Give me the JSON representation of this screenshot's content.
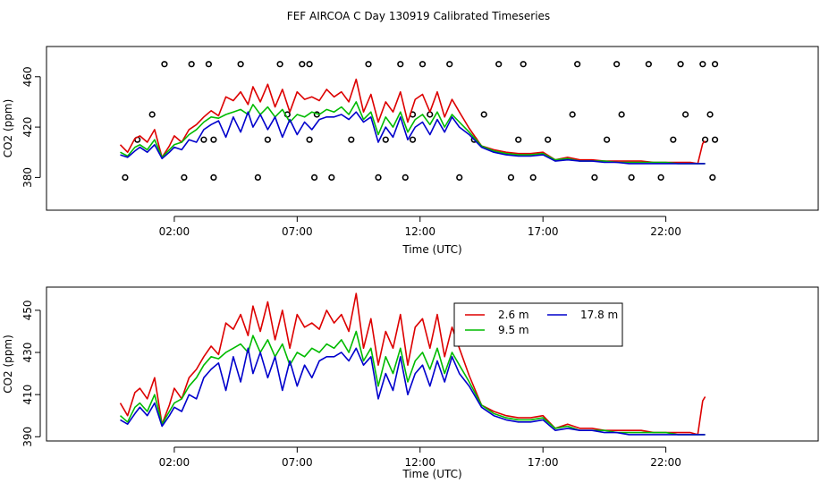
{
  "title": "FEF AIRCOA C  Day 130919  Calibrated Timeseries",
  "colors": {
    "2.6 m": "#dd0000",
    "9.5 m": "#00bb00",
    "17.8 m": "#0000cc",
    "flags": "#000000"
  },
  "chart_data": [
    {
      "type": "line",
      "panel": "top",
      "xlabel": "Time (UTC)",
      "ylabel": "CO2 (ppm)",
      "x_unit": "hours (UTC)",
      "xlim": [
        -3.2,
        28.2
      ],
      "ylim": [
        354,
        484
      ],
      "x_ticks": [
        2,
        7,
        12,
        17,
        22
      ],
      "x_tick_labels": [
        "02:00",
        "07:00",
        "12:00",
        "17:00",
        "22:00"
      ],
      "y_ticks": [
        380,
        420,
        460
      ],
      "y_tick_labels": [
        "380",
        "420",
        "460"
      ],
      "grid": false,
      "legend": "none",
      "series": [
        {
          "name": "2.6 m",
          "x": [
            -0.2,
            0.1,
            0.4,
            0.6,
            0.9,
            1.2,
            1.5,
            1.8,
            2.0,
            2.3,
            2.6,
            2.9,
            3.2,
            3.5,
            3.8,
            4.1,
            4.4,
            4.7,
            5.0,
            5.2,
            5.5,
            5.8,
            6.1,
            6.4,
            6.7,
            7.0,
            7.3,
            7.6,
            7.9,
            8.2,
            8.5,
            8.8,
            9.1,
            9.4,
            9.7,
            10.0,
            10.3,
            10.6,
            10.9,
            11.2,
            11.5,
            11.8,
            12.1,
            12.4,
            12.7,
            13.0,
            13.3,
            13.6,
            14.0,
            14.5,
            15.0,
            15.5,
            16.0,
            16.5,
            17.0,
            17.5,
            18.0,
            18.5,
            19.0,
            19.5,
            20.0,
            20.5,
            21.0,
            21.5,
            22.0,
            22.5,
            23.0,
            23.3,
            23.5,
            23.6
          ],
          "values": [
            406,
            400,
            411,
            413,
            408,
            418,
            396,
            405,
            413,
            408,
            418,
            422,
            428,
            433,
            429,
            444,
            441,
            448,
            438,
            452,
            440,
            454,
            436,
            450,
            432,
            448,
            442,
            444,
            441,
            450,
            444,
            448,
            440,
            458,
            432,
            446,
            424,
            440,
            432,
            448,
            424,
            442,
            446,
            432,
            448,
            428,
            442,
            432,
            419,
            405,
            402,
            400,
            399,
            399,
            400,
            394,
            396,
            394,
            394,
            393,
            393,
            393,
            393,
            392,
            392,
            392,
            392,
            391,
            407,
            409
          ]
        },
        {
          "name": "9.5 m",
          "x": [
            -0.2,
            0.1,
            0.4,
            0.6,
            0.9,
            1.2,
            1.5,
            1.8,
            2.0,
            2.3,
            2.6,
            2.9,
            3.2,
            3.5,
            3.8,
            4.1,
            4.4,
            4.7,
            5.0,
            5.2,
            5.5,
            5.8,
            6.1,
            6.4,
            6.7,
            7.0,
            7.3,
            7.6,
            7.9,
            8.2,
            8.5,
            8.8,
            9.1,
            9.4,
            9.7,
            10.0,
            10.3,
            10.6,
            10.9,
            11.2,
            11.5,
            11.8,
            12.1,
            12.4,
            12.7,
            13.0,
            13.3,
            13.6,
            14.0,
            14.5,
            15.0,
            15.5,
            16.0,
            16.5,
            17.0,
            17.5,
            18.0,
            18.5,
            19.0,
            19.5,
            20.0,
            20.5,
            21.0,
            21.5,
            22.0,
            22.5,
            23.0,
            23.3,
            23.5,
            23.6
          ],
          "values": [
            400,
            397,
            404,
            406,
            402,
            410,
            396,
            402,
            406,
            408,
            414,
            418,
            424,
            428,
            427,
            430,
            432,
            434,
            430,
            438,
            430,
            436,
            428,
            434,
            424,
            430,
            428,
            432,
            430,
            434,
            432,
            436,
            430,
            440,
            426,
            432,
            414,
            428,
            420,
            432,
            416,
            426,
            430,
            422,
            432,
            420,
            430,
            424,
            416,
            405,
            401,
            399,
            398,
            398,
            399,
            394,
            395,
            393,
            393,
            393,
            392,
            392,
            392,
            392,
            392,
            391,
            391,
            391,
            391,
            391
          ]
        },
        {
          "name": "17.8 m",
          "x": [
            -0.2,
            0.1,
            0.4,
            0.6,
            0.9,
            1.2,
            1.5,
            1.8,
            2.0,
            2.3,
            2.6,
            2.9,
            3.2,
            3.5,
            3.8,
            4.1,
            4.4,
            4.7,
            5.0,
            5.2,
            5.5,
            5.8,
            6.1,
            6.4,
            6.7,
            7.0,
            7.3,
            7.6,
            7.9,
            8.2,
            8.5,
            8.8,
            9.1,
            9.4,
            9.7,
            10.0,
            10.3,
            10.6,
            10.9,
            11.2,
            11.5,
            11.8,
            12.1,
            12.4,
            12.7,
            13.0,
            13.3,
            13.6,
            14.0,
            14.5,
            15.0,
            15.5,
            16.0,
            16.5,
            17.0,
            17.5,
            18.0,
            18.5,
            19.0,
            19.5,
            20.0,
            20.5,
            21.0,
            21.5,
            22.0,
            22.5,
            23.0,
            23.3,
            23.5,
            23.6
          ],
          "values": [
            398,
            396,
            401,
            404,
            400,
            406,
            395,
            400,
            404,
            402,
            410,
            408,
            418,
            422,
            425,
            412,
            428,
            416,
            432,
            420,
            430,
            418,
            428,
            412,
            426,
            414,
            424,
            418,
            426,
            428,
            428,
            430,
            426,
            432,
            424,
            428,
            408,
            420,
            412,
            428,
            410,
            420,
            424,
            414,
            426,
            416,
            428,
            420,
            414,
            404,
            400,
            398,
            397,
            397,
            398,
            393,
            394,
            393,
            393,
            392,
            392,
            391,
            391,
            391,
            391,
            391,
            391,
            391,
            391,
            391
          ]
        }
      ],
      "flags": {
        "x": [
          0.0,
          0.5,
          1.1,
          1.6,
          2.7,
          2.4,
          3.2,
          3.4,
          3.6,
          3.6,
          4.7,
          5.4,
          5.8,
          6.3,
          6.6,
          7.2,
          7.5,
          7.5,
          7.8,
          7.7,
          8.4,
          9.2,
          9.9,
          10.3,
          10.6,
          11.2,
          11.4,
          11.7,
          11.7,
          12.1,
          12.4,
          13.2,
          13.6,
          14.2,
          14.6,
          15.2,
          15.7,
          16.0,
          16.2,
          16.6,
          17.2,
          18.2,
          18.4,
          19.1,
          19.6,
          20.0,
          20.2,
          20.6,
          21.3,
          21.8,
          22.3,
          22.6,
          22.8,
          23.5,
          23.6,
          23.8,
          23.9,
          24.0,
          24.0
        ],
        "values": [
          380,
          410,
          430,
          470,
          470,
          380,
          410,
          470,
          380,
          410,
          470,
          380,
          410,
          470,
          430,
          470,
          410,
          470,
          430,
          380,
          380,
          410,
          470,
          380,
          410,
          470,
          380,
          410,
          430,
          470,
          430,
          470,
          380,
          410,
          430,
          470,
          380,
          410,
          470,
          380,
          410,
          430,
          470,
          380,
          410,
          470,
          430,
          380,
          470,
          380,
          410,
          470,
          430,
          470,
          410,
          430,
          380,
          470,
          410
        ]
      }
    },
    {
      "type": "line",
      "panel": "bottom",
      "xlabel": "Time (UTC)",
      "ylabel": "CO2 (ppm)",
      "x_unit": "hours (UTC)",
      "xlim": [
        -3.2,
        28.2
      ],
      "ylim": [
        388,
        461
      ],
      "x_ticks": [
        2,
        7,
        12,
        17,
        22
      ],
      "x_tick_labels": [
        "02:00",
        "07:00",
        "12:00",
        "17:00",
        "22:00"
      ],
      "y_ticks": [
        390,
        410,
        430,
        450
      ],
      "y_tick_labels": [
        "390",
        "410",
        "430",
        "450"
      ],
      "grid": false,
      "legend": "top-center",
      "legend_entries": [
        "2.6 m",
        "17.8 m",
        "9.5 m"
      ],
      "series": [
        {
          "name": "2.6 m",
          "x": [
            -0.2,
            0.1,
            0.4,
            0.6,
            0.9,
            1.2,
            1.5,
            1.8,
            2.0,
            2.3,
            2.6,
            2.9,
            3.2,
            3.5,
            3.8,
            4.1,
            4.4,
            4.7,
            5.0,
            5.2,
            5.5,
            5.8,
            6.1,
            6.4,
            6.7,
            7.0,
            7.3,
            7.6,
            7.9,
            8.2,
            8.5,
            8.8,
            9.1,
            9.4,
            9.7,
            10.0,
            10.3,
            10.6,
            10.9,
            11.2,
            11.5,
            11.8,
            12.1,
            12.4,
            12.7,
            13.0,
            13.3,
            13.6,
            14.0,
            14.5,
            15.0,
            15.5,
            16.0,
            16.5,
            17.0,
            17.5,
            18.0,
            18.5,
            19.0,
            19.5,
            20.0,
            20.5,
            21.0,
            21.5,
            22.0,
            22.5,
            23.0,
            23.3,
            23.5,
            23.6
          ],
          "values": [
            406,
            400,
            411,
            413,
            408,
            418,
            396,
            405,
            413,
            408,
            418,
            422,
            428,
            433,
            429,
            444,
            441,
            448,
            438,
            452,
            440,
            454,
            436,
            450,
            432,
            448,
            442,
            444,
            441,
            450,
            444,
            448,
            440,
            458,
            432,
            446,
            424,
            440,
            432,
            448,
            424,
            442,
            446,
            432,
            448,
            428,
            442,
            432,
            419,
            405,
            402,
            400,
            399,
            399,
            400,
            394,
            396,
            394,
            394,
            393,
            393,
            393,
            393,
            392,
            392,
            392,
            392,
            391,
            407,
            409
          ]
        },
        {
          "name": "9.5 m",
          "x": [
            -0.2,
            0.1,
            0.4,
            0.6,
            0.9,
            1.2,
            1.5,
            1.8,
            2.0,
            2.3,
            2.6,
            2.9,
            3.2,
            3.5,
            3.8,
            4.1,
            4.4,
            4.7,
            5.0,
            5.2,
            5.5,
            5.8,
            6.1,
            6.4,
            6.7,
            7.0,
            7.3,
            7.6,
            7.9,
            8.2,
            8.5,
            8.8,
            9.1,
            9.4,
            9.7,
            10.0,
            10.3,
            10.6,
            10.9,
            11.2,
            11.5,
            11.8,
            12.1,
            12.4,
            12.7,
            13.0,
            13.3,
            13.6,
            14.0,
            14.5,
            15.0,
            15.5,
            16.0,
            16.5,
            17.0,
            17.5,
            18.0,
            18.5,
            19.0,
            19.5,
            20.0,
            20.5,
            21.0,
            21.5,
            22.0,
            22.5,
            23.0,
            23.3,
            23.5,
            23.6
          ],
          "values": [
            400,
            397,
            404,
            406,
            402,
            410,
            396,
            402,
            406,
            408,
            414,
            418,
            424,
            428,
            427,
            430,
            432,
            434,
            430,
            438,
            430,
            436,
            428,
            434,
            424,
            430,
            428,
            432,
            430,
            434,
            432,
            436,
            430,
            440,
            426,
            432,
            414,
            428,
            420,
            432,
            416,
            426,
            430,
            422,
            432,
            420,
            430,
            424,
            416,
            405,
            401,
            399,
            398,
            398,
            399,
            394,
            395,
            393,
            393,
            393,
            392,
            392,
            392,
            392,
            392,
            391,
            391,
            391,
            391,
            391
          ]
        },
        {
          "name": "17.8 m",
          "x": [
            -0.2,
            0.1,
            0.4,
            0.6,
            0.9,
            1.2,
            1.5,
            1.8,
            2.0,
            2.3,
            2.6,
            2.9,
            3.2,
            3.5,
            3.8,
            4.1,
            4.4,
            4.7,
            5.0,
            5.2,
            5.5,
            5.8,
            6.1,
            6.4,
            6.7,
            7.0,
            7.3,
            7.6,
            7.9,
            8.2,
            8.5,
            8.8,
            9.1,
            9.4,
            9.7,
            10.0,
            10.3,
            10.6,
            10.9,
            11.2,
            11.5,
            11.8,
            12.1,
            12.4,
            12.7,
            13.0,
            13.3,
            13.6,
            14.0,
            14.5,
            15.0,
            15.5,
            16.0,
            16.5,
            17.0,
            17.5,
            18.0,
            18.5,
            19.0,
            19.5,
            20.0,
            20.5,
            21.0,
            21.5,
            22.0,
            22.5,
            23.0,
            23.3,
            23.5,
            23.6
          ],
          "values": [
            398,
            396,
            401,
            404,
            400,
            406,
            395,
            400,
            404,
            402,
            410,
            408,
            418,
            422,
            425,
            412,
            428,
            416,
            432,
            420,
            430,
            418,
            428,
            412,
            426,
            414,
            424,
            418,
            426,
            428,
            428,
            430,
            426,
            432,
            424,
            428,
            408,
            420,
            412,
            428,
            410,
            420,
            424,
            414,
            426,
            416,
            428,
            420,
            414,
            404,
            400,
            398,
            397,
            397,
            398,
            393,
            394,
            393,
            393,
            392,
            392,
            391,
            391,
            391,
            391,
            391,
            391,
            391,
            391,
            391
          ]
        }
      ]
    }
  ]
}
